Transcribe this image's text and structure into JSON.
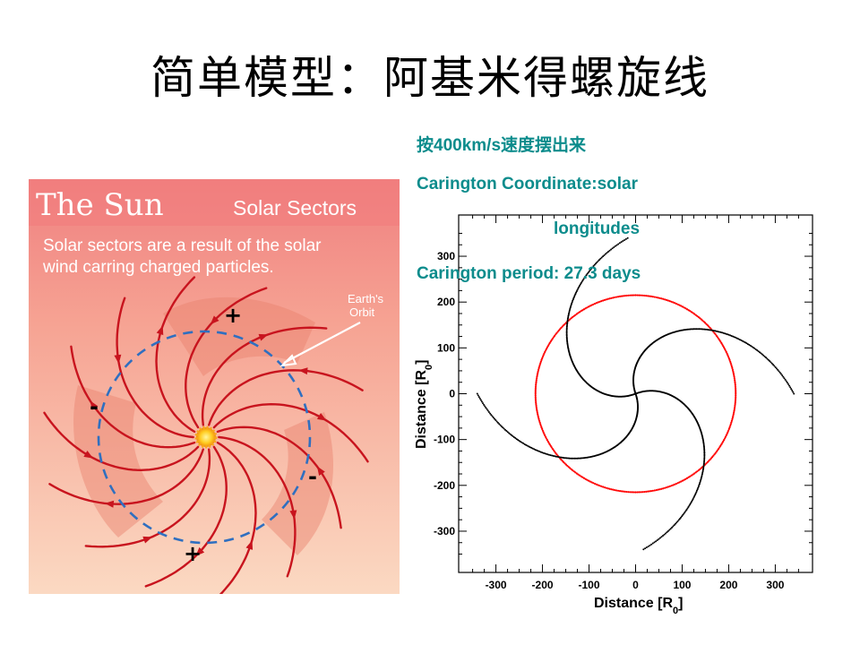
{
  "title": "简单模型：阿基米得螺旋线",
  "captions": {
    "speed": "按400km/s速度摆出来",
    "coordinate_line1": "Carington Coordinate:solar",
    "coordinate_line2": "longitudes",
    "period": "Carington period: 27.3 days"
  },
  "colors": {
    "caption": "#0c8c8c",
    "sun_panel_top": "#f08080",
    "sun_panel_bottom": "#fbd9c2",
    "field_line": "#c8141e",
    "orbit": "#2f6fc0",
    "orbit_plot": "#ff0000",
    "spiral_plot": "#000000"
  },
  "sun_panel": {
    "heading": "The Sun",
    "subheading": "Solar Sectors",
    "description_line1": "Solar sectors are a result of the solar",
    "description_line2": "wind carring charged particles.",
    "orbit_label_line1": "Earth's",
    "orbit_label_line2": "Orbit",
    "sector_signs": [
      "+",
      "-",
      "-",
      "+"
    ]
  },
  "chart_data": {
    "type": "scatter",
    "xlabel": "Distance [R",
    "ylabel": "Distance [R",
    "axis_unit_subscript": "0",
    "axis_unit_close": "]",
    "xlim": [
      -380,
      380
    ],
    "ylim": [
      -390,
      390
    ],
    "x_ticks": [
      -300,
      -200,
      -100,
      0,
      100,
      200,
      300
    ],
    "y_ticks": [
      300,
      200,
      100,
      0,
      -100,
      -200,
      -300
    ],
    "series": [
      {
        "kind": "circle",
        "color": "red",
        "center": [
          0,
          0
        ],
        "radius": 215
      },
      {
        "kind": "spiral",
        "color": "black",
        "arms": 4,
        "max_radius": 340,
        "end_points": [
          [
            -10,
            330
          ],
          [
            340,
            0
          ],
          [
            10,
            -330
          ],
          [
            -340,
            0
          ]
        ]
      }
    ],
    "grid": false
  }
}
